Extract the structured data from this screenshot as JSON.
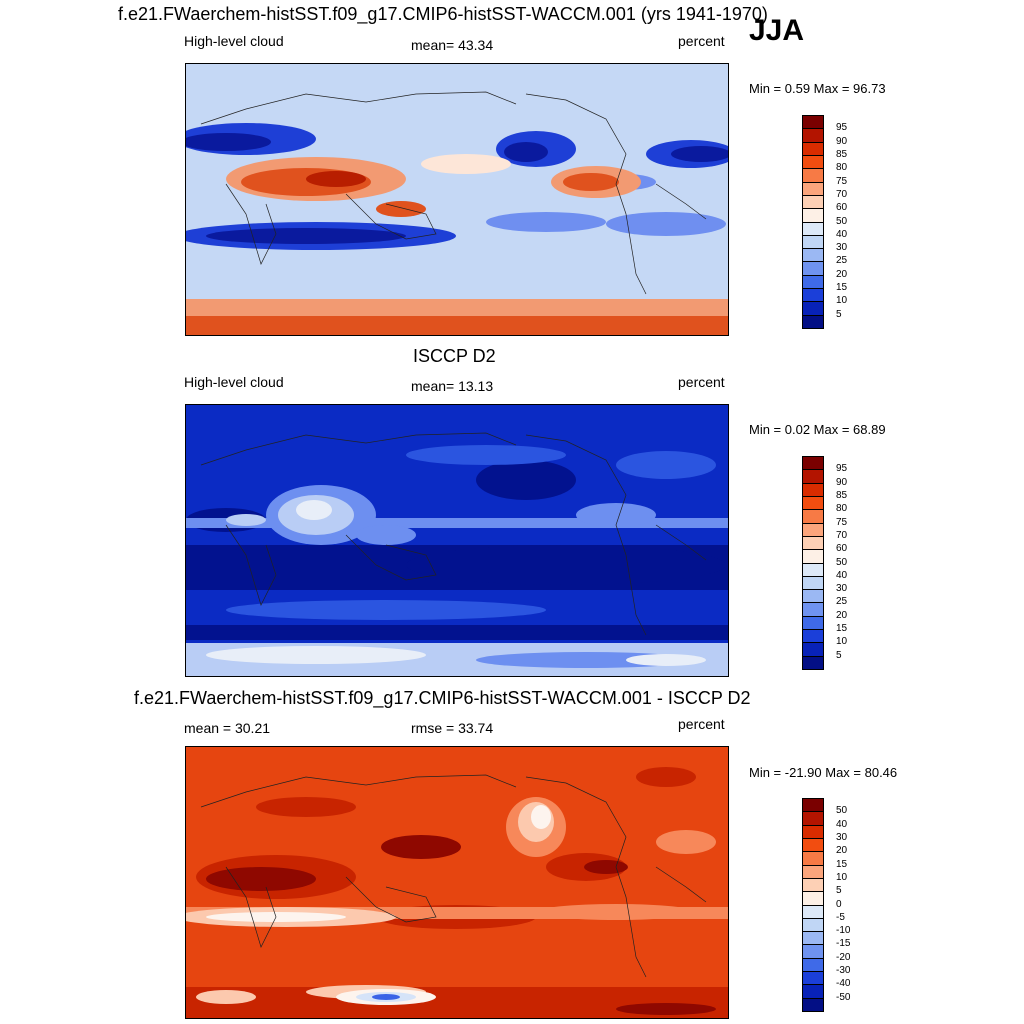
{
  "season": "JJA",
  "panels": [
    {
      "title": "f.e21.FWaerchem-histSST.f09_g17.CMIP6-histSST-WACCM.001 (yrs 1941-1970)",
      "left_label": "High-level cloud",
      "center_label": "mean=  43.34",
      "right_label": "percent",
      "minmax": "Min =   0.59 Max =  96.73",
      "colorbar": {
        "labels": [
          "95",
          "90",
          "85",
          "80",
          "75",
          "70",
          "60",
          "50",
          "40",
          "30",
          "25",
          "20",
          "15",
          "10",
          "5"
        ],
        "colors": [
          "#7a0000",
          "#b31400",
          "#d92c00",
          "#f24d10",
          "#f77a45",
          "#fba57c",
          "#fdd0b5",
          "#fdf0e6",
          "#dde9f8",
          "#c0d6f5",
          "#9bb8f3",
          "#6f93f0",
          "#3f6ae8",
          "#1b3fd9",
          "#0822b8",
          "#030f85"
        ]
      },
      "map_palette": [
        "#0a1a9e",
        "#1e3fd6",
        "#6f8ff0",
        "#c5d8f5",
        "#fde6d8",
        "#f29a72",
        "#e0521e",
        "#b81e00"
      ]
    },
    {
      "title": "ISCCP D2",
      "left_label": "High-level cloud",
      "center_label": "mean=  13.13",
      "right_label": "percent",
      "minmax": "Min =   0.02 Max =  68.89",
      "colorbar": {
        "labels": [
          "95",
          "90",
          "85",
          "80",
          "75",
          "70",
          "60",
          "50",
          "40",
          "30",
          "25",
          "20",
          "15",
          "10",
          "5"
        ],
        "colors": [
          "#7a0000",
          "#b31400",
          "#d92c00",
          "#f24d10",
          "#f77a45",
          "#fba57c",
          "#fdd0b5",
          "#fdf0e6",
          "#dde9f8",
          "#c0d6f5",
          "#9bb8f3",
          "#6f93f0",
          "#3f6ae8",
          "#1b3fd9",
          "#0822b8",
          "#030f85"
        ]
      },
      "map_palette": [
        "#02128f",
        "#0b2bc4",
        "#2b55e0",
        "#6d8ff0",
        "#b9cdf5",
        "#e8eef8",
        "#fde6d8"
      ]
    },
    {
      "title": "f.e21.FWaerchem-histSST.f09_g17.CMIP6-histSST-WACCM.001 - ISCCP D2",
      "left_label": "mean =  30.21",
      "center_label": "rmse =  33.74",
      "right_label": "percent",
      "minmax": "Min = -21.90 Max =  80.46",
      "colorbar": {
        "labels": [
          "50",
          "40",
          "30",
          "20",
          "15",
          "10",
          "5",
          "0",
          "-5",
          "-10",
          "-15",
          "-20",
          "-30",
          "-40",
          "-50"
        ],
        "colors": [
          "#7a0000",
          "#b31400",
          "#d92c00",
          "#f24d10",
          "#f77a45",
          "#fba57c",
          "#fdd0b5",
          "#fdf0e6",
          "#dde9f8",
          "#c0d6f5",
          "#9bb8f3",
          "#6f93f0",
          "#3f6ae8",
          "#1b3fd9",
          "#0822b8",
          "#030f85"
        ]
      },
      "map_palette": [
        "#8f0800",
        "#c82400",
        "#e64510",
        "#f7885a",
        "#fcc9ae",
        "#fdf4ee",
        "#d5e3f8",
        "#3a63e6"
      ]
    }
  ]
}
